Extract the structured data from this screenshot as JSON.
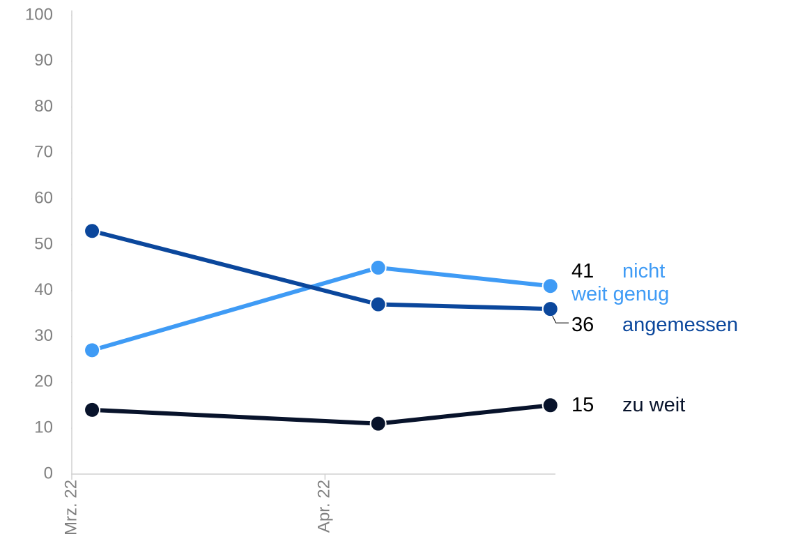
{
  "chart_data": {
    "type": "line",
    "x": [
      0.08,
      1.21,
      1.89
    ],
    "xlim": [
      0,
      1.91
    ],
    "xticks": [
      {
        "value": 0,
        "label": "Mrz. 22"
      },
      {
        "value": 1,
        "label": "Apr. 22"
      }
    ],
    "ylim": [
      0,
      100
    ],
    "yticks": [
      0,
      10,
      20,
      30,
      40,
      50,
      60,
      70,
      80,
      90,
      100
    ],
    "series": [
      {
        "name": "nicht weit genug",
        "color": "#3f9bf5",
        "values": [
          27,
          45,
          41
        ]
      },
      {
        "name": "angemessen",
        "color": "#0b479c",
        "values": [
          53,
          37,
          36
        ]
      },
      {
        "name": "zu weit",
        "color": "#08132b",
        "values": [
          14,
          11,
          15
        ]
      }
    ]
  }
}
